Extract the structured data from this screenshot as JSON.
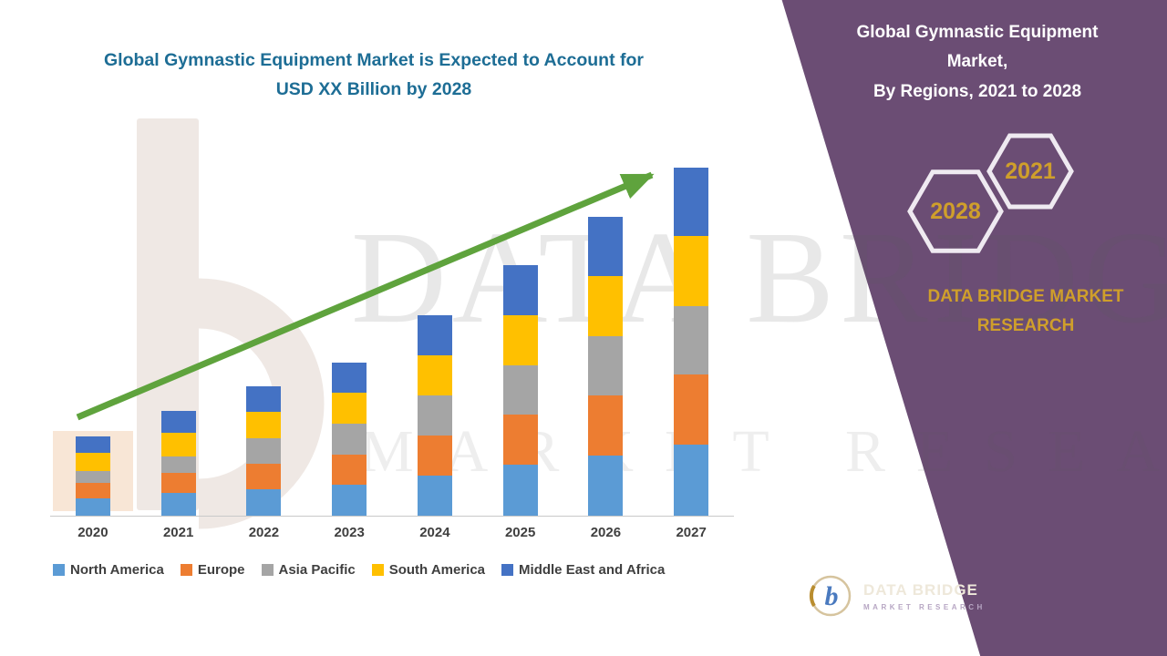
{
  "header": {
    "title_line1": "Global Gymnastic Equipment Market is Expected to Account for",
    "title_line2": "USD XX Billion by 2028"
  },
  "panel": {
    "title_line1": "Global Gymnastic Equipment Market,",
    "title_line2": "By Regions, 2021 to 2028",
    "hexagons": {
      "back": "2028",
      "front": "2021"
    },
    "brand_line1": "DATA BRIDGE MARKET",
    "brand_line2": "RESEARCH",
    "bg_color": "#6b4d74",
    "accent_gold": "#cf9f2b"
  },
  "watermark": {
    "line1": "DATA BRIDGE",
    "line2": "MARKET RESEARCH"
  },
  "footer_logo": {
    "mark": "b",
    "brand": "DATA BRIDGE",
    "subtitle": "MARKET RESEARCH"
  },
  "chart_data": {
    "type": "bar",
    "stacked": true,
    "title": "Global Gymnastic Equipment Market is Expected to Account for USD XX Billion by 2028",
    "xlabel": "",
    "ylabel": "",
    "value_axis_labeled": false,
    "note": "No y-axis scale shown in source; values are relative units estimated from bar heights (2027 total = 100).",
    "categories": [
      "2020",
      "2021",
      "2022",
      "2023",
      "2024",
      "2025",
      "2026",
      "2027"
    ],
    "series": [
      {
        "name": "North America",
        "color": "#5B9BD5",
        "values": [
          4.9,
          6.6,
          7.6,
          8.8,
          11.6,
          14.6,
          17.3,
          20.5
        ]
      },
      {
        "name": "Europe",
        "color": "#ED7D31",
        "values": [
          4.5,
          5.8,
          7.4,
          8.8,
          11.5,
          14.4,
          17.2,
          20.0
        ]
      },
      {
        "name": "Asia Pacific",
        "color": "#A5A5A5",
        "values": [
          3.4,
          4.5,
          7.3,
          8.8,
          11.5,
          14.2,
          17.1,
          19.6
        ]
      },
      {
        "name": "South America",
        "color": "#FFC000",
        "values": [
          5.4,
          6.8,
          7.5,
          8.9,
          11.6,
          14.4,
          17.2,
          20.2
        ]
      },
      {
        "name": "Middle East and Africa",
        "color": "#4472C4",
        "values": [
          4.6,
          6.3,
          7.4,
          8.7,
          11.4,
          14.4,
          17.1,
          19.7
        ]
      }
    ],
    "ylim": [
      0,
      105
    ],
    "legend_position": "bottom",
    "grid": false,
    "trend_arrow": true,
    "arrow_color": "#5fa33d"
  }
}
